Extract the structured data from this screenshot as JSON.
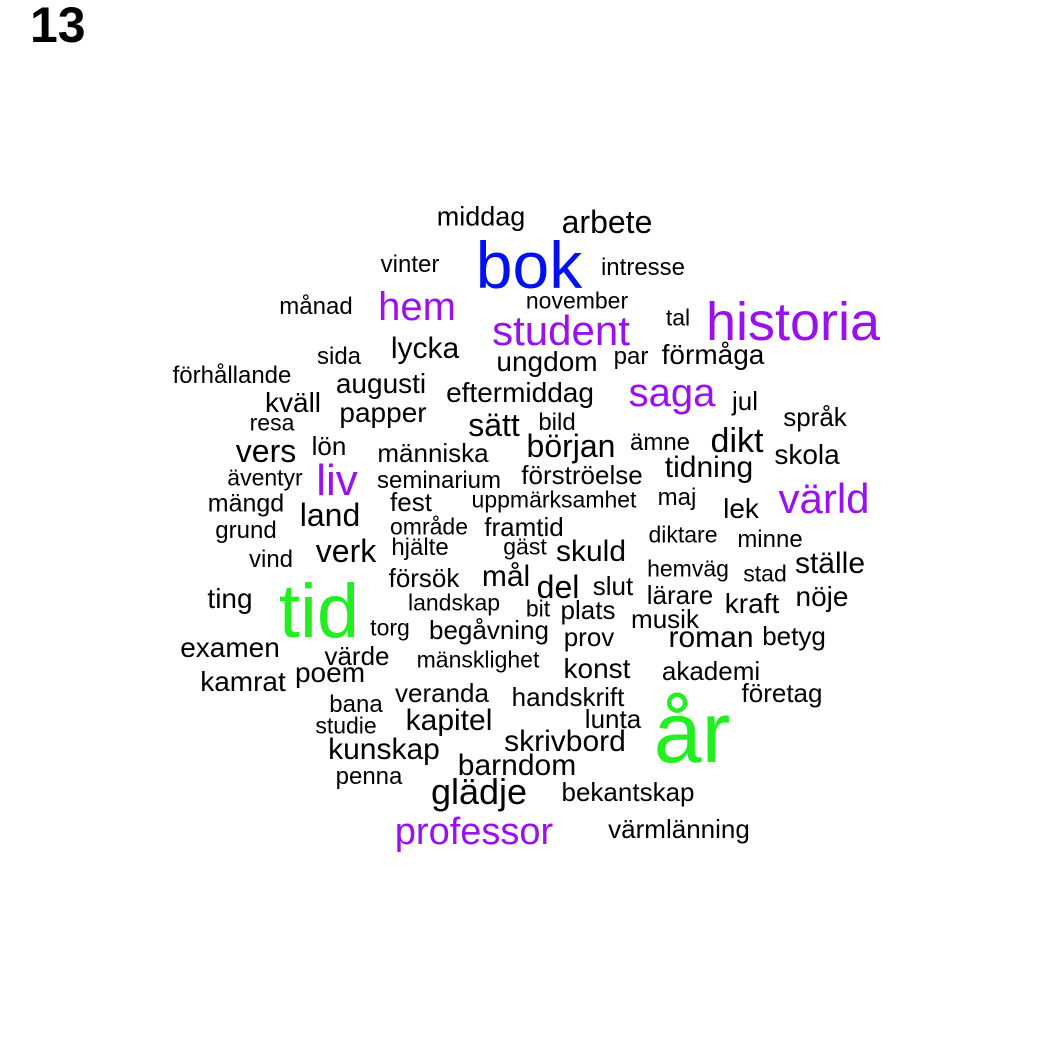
{
  "panel_number": "13",
  "colors": {
    "green": "#22ee22",
    "blue": "#0011ee",
    "purple": "#9911ee",
    "black": "#000000"
  },
  "words": [
    {
      "text": "år",
      "color": "green",
      "size": 3
    },
    {
      "text": "tid",
      "color": "green",
      "size": 3
    },
    {
      "text": "bok",
      "color": "blue",
      "size": 2.6
    },
    {
      "text": "historia",
      "color": "purple",
      "size": 2.4
    },
    {
      "text": "student",
      "color": "purple",
      "size": 1.9
    },
    {
      "text": "värld",
      "color": "purple",
      "size": 1.9
    },
    {
      "text": "hem",
      "color": "purple",
      "size": 1.9
    },
    {
      "text": "saga",
      "color": "purple",
      "size": 1.9
    },
    {
      "text": "liv",
      "color": "purple",
      "size": 2
    },
    {
      "text": "professor",
      "color": "purple",
      "size": 1.8
    },
    {
      "text": "arbete",
      "color": "black",
      "size": 1.5
    },
    {
      "text": "glädje",
      "color": "black",
      "size": 1.6
    },
    {
      "text": "middag",
      "color": "black",
      "size": 1.2
    },
    {
      "text": "intresse",
      "color": "black",
      "size": 1.1
    },
    {
      "text": "vinter",
      "color": "black",
      "size": 1.1
    },
    {
      "text": "november",
      "color": "black",
      "size": 1
    },
    {
      "text": "månad",
      "color": "black",
      "size": 1.1
    },
    {
      "text": "tal",
      "color": "black",
      "size": 1
    },
    {
      "text": "lycka",
      "color": "black",
      "size": 1.4
    },
    {
      "text": "sida",
      "color": "black",
      "size": 1.1
    },
    {
      "text": "ungdom",
      "color": "black",
      "size": 1.3
    },
    {
      "text": "par",
      "color": "black",
      "size": 1.1
    },
    {
      "text": "förmåga",
      "color": "black",
      "size": 1.3
    },
    {
      "text": "förhållande",
      "color": "black",
      "size": 1.1
    },
    {
      "text": "augusti",
      "color": "black",
      "size": 1.3
    },
    {
      "text": "eftermiddag",
      "color": "black",
      "size": 1.3
    },
    {
      "text": "kväll",
      "color": "black",
      "size": 1.3
    },
    {
      "text": "papper",
      "color": "black",
      "size": 1.3
    },
    {
      "text": "jul",
      "color": "black",
      "size": 1.2
    },
    {
      "text": "resa",
      "color": "black",
      "size": 1.1
    },
    {
      "text": "sätt",
      "color": "black",
      "size": 1.5
    },
    {
      "text": "bild",
      "color": "black",
      "size": 1.1
    },
    {
      "text": "språk",
      "color": "black",
      "size": 1.2
    },
    {
      "text": "vers",
      "color": "black",
      "size": 1.5
    },
    {
      "text": "lön",
      "color": "black",
      "size": 1.2
    },
    {
      "text": "människa",
      "color": "black",
      "size": 1.2
    },
    {
      "text": "början",
      "color": "black",
      "size": 1.5
    },
    {
      "text": "ämne",
      "color": "black",
      "size": 1.1
    },
    {
      "text": "dikt",
      "color": "black",
      "size": 1.6
    },
    {
      "text": "skola",
      "color": "black",
      "size": 1.3
    },
    {
      "text": "äventyr",
      "color": "black",
      "size": 1.1
    },
    {
      "text": "seminarium",
      "color": "black",
      "size": 1.1
    },
    {
      "text": "förströelse",
      "color": "black",
      "size": 1.2
    },
    {
      "text": "tidning",
      "color": "black",
      "size": 1.4
    },
    {
      "text": "mängd",
      "color": "black",
      "size": 1.2
    },
    {
      "text": "fest",
      "color": "black",
      "size": 1.2
    },
    {
      "text": "uppmärksamhet",
      "color": "black",
      "size": 1.1
    },
    {
      "text": "maj",
      "color": "black",
      "size": 1.1
    },
    {
      "text": "land",
      "color": "black",
      "size": 1.5
    },
    {
      "text": "lek",
      "color": "black",
      "size": 1.3
    },
    {
      "text": "grund",
      "color": "black",
      "size": 1.1
    },
    {
      "text": "område",
      "color": "black",
      "size": 1.1
    },
    {
      "text": "framtid",
      "color": "black",
      "size": 1.2
    },
    {
      "text": "diktare",
      "color": "black",
      "size": 1.1
    },
    {
      "text": "minne",
      "color": "black",
      "size": 1.1
    },
    {
      "text": "vind",
      "color": "black",
      "size": 1.1
    },
    {
      "text": "verk",
      "color": "black",
      "size": 1.5
    },
    {
      "text": "hjälte",
      "color": "black",
      "size": 1.1
    },
    {
      "text": "gäst",
      "color": "black",
      "size": 1.1
    },
    {
      "text": "skuld",
      "color": "black",
      "size": 1.4
    },
    {
      "text": "ställe",
      "color": "black",
      "size": 1.4
    },
    {
      "text": "hemväg",
      "color": "black",
      "size": 1.1
    },
    {
      "text": "stad",
      "color": "black",
      "size": 1.1
    },
    {
      "text": "försök",
      "color": "black",
      "size": 1.2
    },
    {
      "text": "mål",
      "color": "black",
      "size": 1.4
    },
    {
      "text": "del",
      "color": "black",
      "size": 1.5
    },
    {
      "text": "slut",
      "color": "black",
      "size": 1.2
    },
    {
      "text": "lärare",
      "color": "black",
      "size": 1.2
    },
    {
      "text": "ting",
      "color": "black",
      "size": 1.3
    },
    {
      "text": "landskap",
      "color": "black",
      "size": 1.1
    },
    {
      "text": "bit",
      "color": "black",
      "size": 1.1
    },
    {
      "text": "plats",
      "color": "black",
      "size": 1.2
    },
    {
      "text": "kraft",
      "color": "black",
      "size": 1.3
    },
    {
      "text": "nöje",
      "color": "black",
      "size": 1.3
    },
    {
      "text": "musik",
      "color": "black",
      "size": 1.2
    },
    {
      "text": "torg",
      "color": "black",
      "size": 1.1
    },
    {
      "text": "begåvning",
      "color": "black",
      "size": 1.2
    },
    {
      "text": "prov",
      "color": "black",
      "size": 1.2
    },
    {
      "text": "roman",
      "color": "black",
      "size": 1.4
    },
    {
      "text": "betyg",
      "color": "black",
      "size": 1.2
    },
    {
      "text": "examen",
      "color": "black",
      "size": 1.3
    },
    {
      "text": "värde",
      "color": "black",
      "size": 1.2
    },
    {
      "text": "mänsklighet",
      "color": "black",
      "size": 1.1
    },
    {
      "text": "konst",
      "color": "black",
      "size": 1.3
    },
    {
      "text": "akademi",
      "color": "black",
      "size": 1.2
    },
    {
      "text": "kamrat",
      "color": "black",
      "size": 1.3
    },
    {
      "text": "poem",
      "color": "black",
      "size": 1.3
    },
    {
      "text": "företag",
      "color": "black",
      "size": 1.2
    },
    {
      "text": "veranda",
      "color": "black",
      "size": 1.2
    },
    {
      "text": "handskrift",
      "color": "black",
      "size": 1.2
    },
    {
      "text": "bana",
      "color": "black",
      "size": 1.1
    },
    {
      "text": "studie",
      "color": "black",
      "size": 1.1
    },
    {
      "text": "kapitel",
      "color": "black",
      "size": 1.4
    },
    {
      "text": "lunta",
      "color": "black",
      "size": 1.2
    },
    {
      "text": "kunskap",
      "color": "black",
      "size": 1.4
    },
    {
      "text": "skrivbord",
      "color": "black",
      "size": 1.4
    },
    {
      "text": "barndom",
      "color": "black",
      "size": 1.4
    },
    {
      "text": "penna",
      "color": "black",
      "size": 1.1
    },
    {
      "text": "bekantskap",
      "color": "black",
      "size": 1.2
    },
    {
      "text": "värmlänning",
      "color": "black",
      "size": 1.2
    }
  ]
}
